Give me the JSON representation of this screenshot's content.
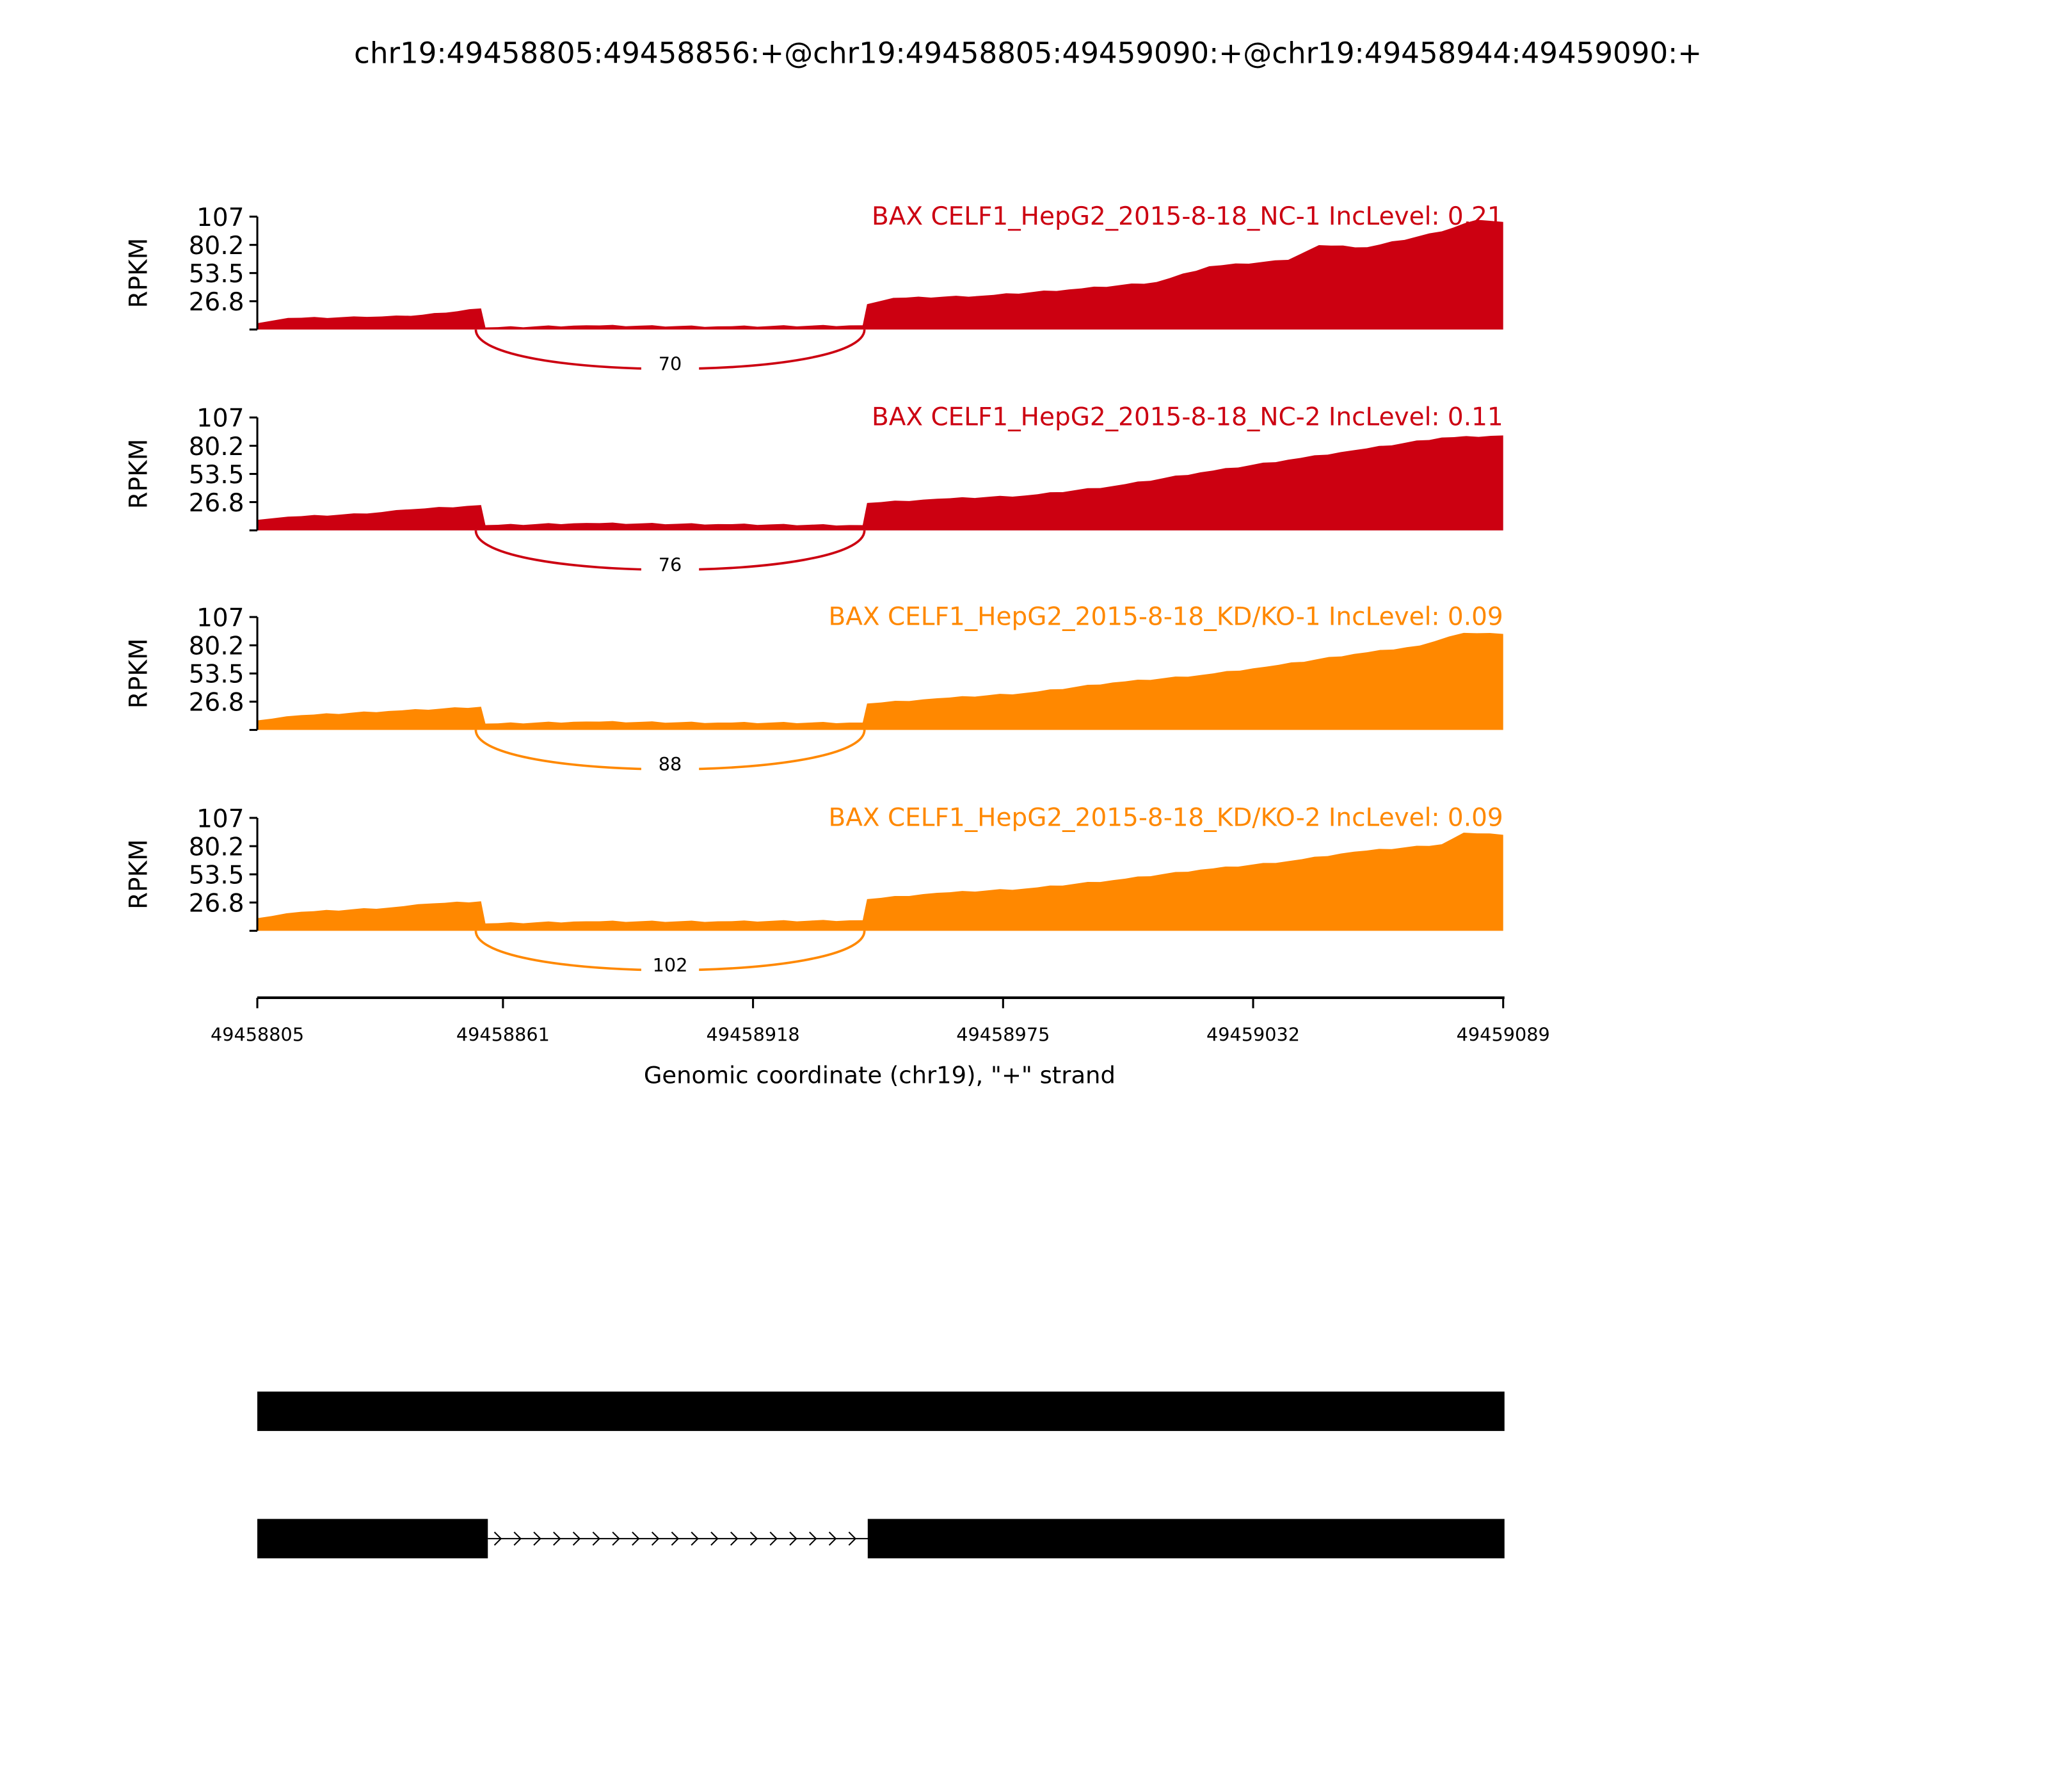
{
  "chart_data": {
    "type": "area",
    "title": "chr19:49458805:49458856:+@chr19:49458805:49459090:+@chr19:49458944:49459090:+",
    "xlabel": "Genomic coordinate (chr19), \"+\" strand",
    "ylabel": "RPKM",
    "xlim": [
      49458805,
      49459089
    ],
    "xticks": [
      "49458805",
      "49458861",
      "49458918",
      "49458975",
      "49459032",
      "49459089"
    ],
    "ylim": [
      0,
      107
    ],
    "yticks": [
      "26.8",
      "53.5",
      "80.2",
      "107"
    ],
    "exon1_end": 49458856,
    "exon2_start": 49458944,
    "panels": [
      {
        "label": "BAX CELF1_HepG2_2015-8-18_NC-1 IncLevel: 0.21",
        "color": "#CC0011",
        "junction": "70",
        "coverage": [
          [
            49458805,
            6
          ],
          [
            49458812,
            11
          ],
          [
            49458830,
            12
          ],
          [
            49458840,
            13
          ],
          [
            49458848,
            16
          ],
          [
            49458856,
            20
          ],
          [
            49458857,
            2
          ],
          [
            49458880,
            4
          ],
          [
            49458910,
            3
          ],
          [
            49458943,
            4
          ],
          [
            49458944,
            24
          ],
          [
            49458950,
            30
          ],
          [
            49458970,
            32
          ],
          [
            49458990,
            38
          ],
          [
            49459010,
            45
          ],
          [
            49459022,
            60
          ],
          [
            49459040,
            66
          ],
          [
            49459047,
            80
          ],
          [
            49459058,
            78
          ],
          [
            49459075,
            93
          ],
          [
            49459083,
            104
          ],
          [
            49459089,
            102
          ]
        ]
      },
      {
        "label": "BAX CELF1_HepG2_2015-8-18_NC-2 IncLevel: 0.11",
        "color": "#CC0011",
        "junction": "76",
        "coverage": [
          [
            49458805,
            10
          ],
          [
            49458812,
            13
          ],
          [
            49458830,
            16
          ],
          [
            49458840,
            20
          ],
          [
            49458856,
            24
          ],
          [
            49458857,
            5
          ],
          [
            49458880,
            7
          ],
          [
            49458910,
            6
          ],
          [
            49458943,
            5
          ],
          [
            49458944,
            26
          ],
          [
            49458960,
            30
          ],
          [
            49458980,
            33
          ],
          [
            49459000,
            42
          ],
          [
            49459020,
            55
          ],
          [
            49459040,
            67
          ],
          [
            49459055,
            76
          ],
          [
            49459075,
            88
          ],
          [
            49459089,
            90
          ]
        ]
      },
      {
        "label": "BAX CELF1_HepG2_2015-8-18_KD/KO-1 IncLevel: 0.09",
        "color": "#FF8800",
        "junction": "88",
        "coverage": [
          [
            49458805,
            9
          ],
          [
            49458815,
            14
          ],
          [
            49458835,
            18
          ],
          [
            49458856,
            22
          ],
          [
            49458857,
            6
          ],
          [
            49458880,
            8
          ],
          [
            49458910,
            7
          ],
          [
            49458943,
            7
          ],
          [
            49458944,
            25
          ],
          [
            49458960,
            30
          ],
          [
            49458980,
            35
          ],
          [
            49459000,
            45
          ],
          [
            49459020,
            52
          ],
          [
            49459035,
            60
          ],
          [
            49459055,
            72
          ],
          [
            49459070,
            80
          ],
          [
            49459080,
            92
          ],
          [
            49459089,
            91
          ]
        ]
      },
      {
        "label": "BAX CELF1_HepG2_2015-8-18_KD/KO-2 IncLevel: 0.09",
        "color": "#FF8800",
        "junction": "102",
        "coverage": [
          [
            49458805,
            12
          ],
          [
            49458815,
            18
          ],
          [
            49458835,
            22
          ],
          [
            49458845,
            26
          ],
          [
            49458856,
            28
          ],
          [
            49458857,
            7
          ],
          [
            49458880,
            9
          ],
          [
            49458910,
            9
          ],
          [
            49458943,
            10
          ],
          [
            49458944,
            30
          ],
          [
            49458960,
            36
          ],
          [
            49458980,
            40
          ],
          [
            49459000,
            48
          ],
          [
            49459020,
            58
          ],
          [
            49459040,
            66
          ],
          [
            49459055,
            75
          ],
          [
            49459075,
            82
          ],
          [
            49459080,
            93
          ],
          [
            49459089,
            91
          ]
        ]
      }
    ],
    "transcripts": [
      {
        "exons": [
          [
            49458805,
            49459089
          ]
        ]
      },
      {
        "exons": [
          [
            49458805,
            49458856
          ],
          [
            49458944,
            49459089
          ]
        ]
      }
    ]
  }
}
